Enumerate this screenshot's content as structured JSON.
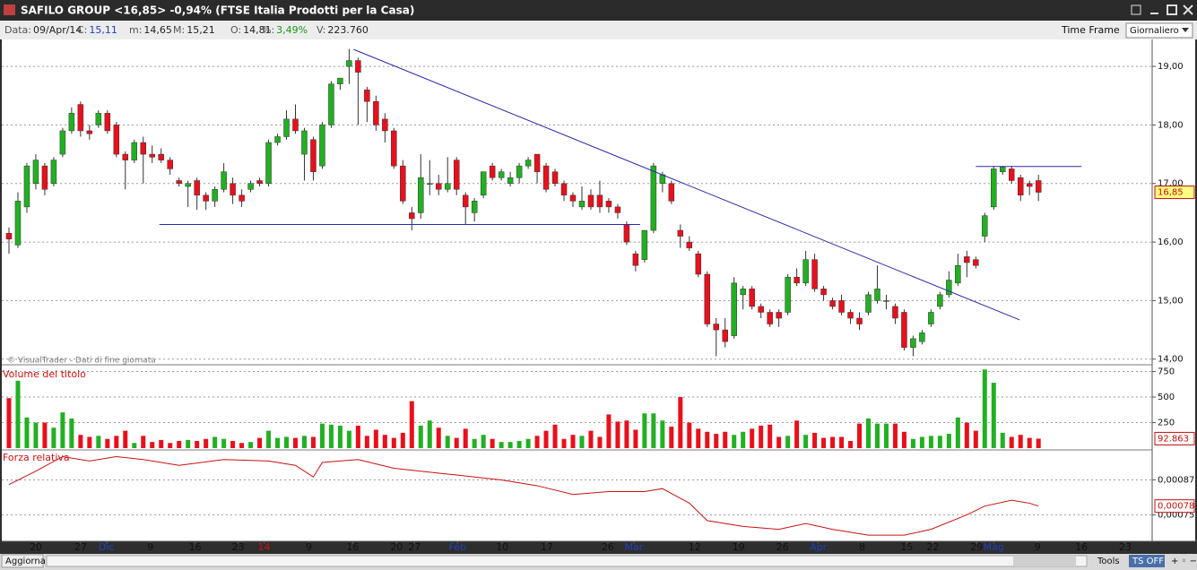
{
  "header": {
    "title": "SAFILO GROUP <16,85> -0,94%  (FTSE Italia Prodotti per la Casa)",
    "info": [
      {
        "label": "Data:",
        "value": "09/Apr/14",
        "color": "#222222"
      },
      {
        "label": "C:",
        "value": "15,11",
        "color": "#1f3fbf"
      },
      {
        "label": "m:",
        "value": "14,65",
        "color": "#222222"
      },
      {
        "label": "M:",
        "value": "15,21",
        "color": "#222222"
      },
      {
        "label": "O:",
        "value": "14,81",
        "color": "#222222"
      },
      {
        "label": "%:",
        "value": "3,49%",
        "color": "#1a9a1a"
      },
      {
        "label": "V:",
        "value": "223.760",
        "color": "#222222"
      }
    ],
    "time_frame": "Time Frame",
    "period": "Giornaliero",
    "credit": "© VisualTrader - Dati di fine giornata"
  },
  "footer": {
    "refresh": "Aggiorna",
    "tools": "Tools",
    "ts": "TS OFF"
  },
  "chart_data": [
    {
      "type": "candlestick",
      "up_color": "#22b022",
      "down_color": "#e8101c",
      "xlim": [
        -0.8,
        127.7
      ],
      "xticks": [
        {
          "value": 3,
          "label": "20"
        },
        {
          "value": 8,
          "label": "27"
        },
        {
          "value": 10.9,
          "label": "Dic",
          "color": "#1f3fbf"
        },
        {
          "value": 15.8,
          "label": "9"
        },
        {
          "value": 20.8,
          "label": "16"
        },
        {
          "value": 25.6,
          "label": "23"
        },
        {
          "value": 28.5,
          "label": "14",
          "color": "#d01010"
        },
        {
          "value": 33.5,
          "label": "9"
        },
        {
          "value": 38.4,
          "label": "16"
        },
        {
          "value": 43.3,
          "label": "20"
        },
        {
          "value": 45.3,
          "label": "27"
        },
        {
          "value": 50.1,
          "label": "Feb",
          "color": "#1f3fbf"
        },
        {
          "value": 55.1,
          "label": "10"
        },
        {
          "value": 60.1,
          "label": "17"
        },
        {
          "value": 66.9,
          "label": "26"
        },
        {
          "value": 69.8,
          "label": "Mar",
          "color": "#1f3fbf"
        },
        {
          "value": 76.6,
          "label": "12"
        },
        {
          "value": 81.5,
          "label": "19"
        },
        {
          "value": 86.4,
          "label": "26"
        },
        {
          "value": 90.4,
          "label": "Apr",
          "color": "#1f3fbf"
        },
        {
          "value": 95.3,
          "label": "8"
        },
        {
          "value": 100.3,
          "label": "15"
        },
        {
          "value": 103.2,
          "label": "22"
        },
        {
          "value": 108.1,
          "label": "29"
        },
        {
          "value": 110,
          "label": "Mag",
          "color": "#1f3fbf"
        },
        {
          "value": 114.9,
          "label": "9"
        },
        {
          "value": 119.8,
          "label": "16"
        },
        {
          "value": 124.7,
          "label": "23"
        }
      ],
      "ylim": [
        13.95,
        19.43
      ],
      "yticks": [
        {
          "value": 14,
          "label": "14,00"
        },
        {
          "value": 15,
          "label": "15,00"
        },
        {
          "value": 16,
          "label": "16,00"
        },
        {
          "value": 17,
          "label": "17,00"
        },
        {
          "value": 18,
          "label": "18,00"
        },
        {
          "value": 19,
          "label": "19,00"
        }
      ],
      "grid": true,
      "last_label": {
        "value": 16.85,
        "label": "16,85",
        "color": "#ffff80"
      },
      "candles": [
        [
          16.15,
          16.25,
          15.8,
          16.05
        ],
        [
          15.95,
          16.85,
          15.9,
          16.7
        ],
        [
          16.6,
          17.35,
          16.5,
          17.3
        ],
        [
          17.0,
          17.5,
          16.9,
          17.4
        ],
        [
          17.3,
          17.35,
          16.8,
          16.9
        ],
        [
          17.0,
          17.45,
          16.95,
          17.4
        ],
        [
          17.5,
          17.95,
          17.45,
          17.9
        ],
        [
          17.9,
          18.3,
          17.85,
          18.2
        ],
        [
          18.35,
          18.4,
          17.8,
          17.9
        ],
        [
          17.9,
          18.0,
          17.75,
          17.85
        ],
        [
          18.0,
          18.25,
          17.95,
          18.2
        ],
        [
          18.2,
          18.25,
          17.85,
          17.9
        ],
        [
          18.0,
          18.05,
          17.45,
          17.5
        ],
        [
          17.5,
          17.55,
          16.9,
          17.4
        ],
        [
          17.4,
          17.75,
          17.35,
          17.7
        ],
        [
          17.7,
          17.8,
          17.0,
          17.5
        ],
        [
          17.5,
          17.65,
          17.35,
          17.45
        ],
        [
          17.5,
          17.6,
          17.35,
          17.4
        ],
        [
          17.4,
          17.45,
          17.15,
          17.25
        ],
        [
          17.05,
          17.1,
          16.95,
          17.0
        ],
        [
          16.95,
          17.05,
          16.6,
          17.0
        ],
        [
          17.05,
          17.1,
          16.55,
          16.8
        ],
        [
          16.8,
          16.85,
          16.55,
          16.7
        ],
        [
          16.7,
          16.95,
          16.6,
          16.9
        ],
        [
          16.9,
          17.35,
          16.85,
          17.2
        ],
        [
          17.0,
          17.1,
          16.65,
          16.8
        ],
        [
          16.8,
          16.9,
          16.6,
          16.7
        ],
        [
          16.9,
          17.05,
          16.85,
          17.0
        ],
        [
          17.05,
          17.1,
          16.95,
          17.0
        ],
        [
          17.0,
          17.75,
          16.95,
          17.7
        ],
        [
          17.7,
          17.85,
          17.65,
          17.8
        ],
        [
          17.8,
          18.25,
          17.75,
          18.1
        ],
        [
          18.1,
          18.35,
          17.85,
          17.9
        ],
        [
          17.5,
          17.95,
          17.05,
          17.9
        ],
        [
          17.75,
          17.8,
          17.05,
          17.2
        ],
        [
          17.3,
          18.05,
          17.25,
          18.0
        ],
        [
          18.0,
          18.75,
          17.95,
          18.7
        ],
        [
          18.7,
          18.8,
          18.6,
          18.8
        ],
        [
          19.0,
          19.3,
          18.7,
          19.1
        ],
        [
          19.1,
          19.15,
          18.0,
          18.9
        ],
        [
          18.6,
          18.65,
          18.05,
          18.4
        ],
        [
          18.4,
          18.5,
          17.9,
          18.0
        ],
        [
          18.1,
          18.2,
          17.7,
          17.9
        ],
        [
          17.9,
          17.95,
          17.25,
          17.3
        ],
        [
          17.3,
          17.4,
          16.65,
          16.7
        ],
        [
          16.5,
          16.6,
          16.2,
          16.4
        ],
        [
          16.5,
          17.5,
          16.4,
          17.1
        ],
        [
          17.0,
          17.4,
          16.8,
          17.0
        ],
        [
          17.0,
          17.15,
          16.8,
          16.9
        ],
        [
          16.9,
          17.45,
          16.85,
          17.0
        ],
        [
          17.4,
          17.45,
          16.8,
          16.9
        ],
        [
          16.8,
          16.85,
          16.3,
          16.6
        ],
        [
          16.5,
          16.75,
          16.35,
          16.7
        ],
        [
          16.8,
          17.2,
          16.75,
          17.2
        ],
        [
          17.3,
          17.35,
          17.05,
          17.1
        ],
        [
          17.1,
          17.25,
          17.05,
          17.2
        ],
        [
          17.0,
          17.2,
          16.95,
          17.1
        ],
        [
          17.1,
          17.35,
          17.0,
          17.3
        ],
        [
          17.3,
          17.45,
          17.25,
          17.4
        ],
        [
          17.5,
          17.5,
          17.0,
          17.2
        ],
        [
          17.3,
          17.35,
          16.85,
          16.9
        ],
        [
          17.2,
          17.25,
          16.95,
          17.0
        ],
        [
          17.0,
          17.05,
          16.7,
          16.8
        ],
        [
          16.8,
          16.85,
          16.6,
          16.7
        ],
        [
          16.6,
          16.95,
          16.55,
          16.7
        ],
        [
          16.8,
          16.9,
          16.55,
          16.6
        ],
        [
          16.8,
          17.05,
          16.5,
          16.6
        ],
        [
          16.7,
          16.75,
          16.5,
          16.6
        ],
        [
          16.6,
          16.65,
          16.4,
          16.5
        ],
        [
          16.3,
          16.35,
          15.95,
          16.0
        ],
        [
          15.8,
          15.85,
          15.5,
          15.6
        ],
        [
          15.7,
          16.2,
          15.65,
          16.2
        ],
        [
          16.2,
          17.35,
          16.15,
          17.3
        ],
        [
          17.0,
          17.2,
          16.85,
          17.15
        ],
        [
          17.0,
          17.05,
          16.65,
          16.7
        ],
        [
          16.2,
          16.3,
          15.9,
          16.1
        ],
        [
          16.0,
          16.1,
          15.85,
          15.9
        ],
        [
          15.8,
          15.85,
          15.4,
          15.45
        ],
        [
          15.45,
          15.5,
          14.55,
          14.6
        ],
        [
          14.6,
          14.7,
          14.05,
          14.5
        ],
        [
          14.5,
          14.7,
          14.2,
          14.3
        ],
        [
          14.4,
          15.4,
          14.35,
          15.3
        ],
        [
          15.1,
          15.25,
          14.85,
          15.2
        ],
        [
          15.2,
          15.25,
          14.85,
          14.9
        ],
        [
          14.9,
          14.95,
          14.7,
          14.8
        ],
        [
          14.8,
          14.85,
          14.55,
          14.6
        ],
        [
          14.8,
          14.85,
          14.55,
          14.7
        ],
        [
          14.8,
          15.45,
          14.75,
          15.4
        ],
        [
          15.4,
          15.55,
          15.25,
          15.3
        ],
        [
          15.3,
          15.85,
          15.25,
          15.7
        ],
        [
          15.7,
          15.8,
          15.15,
          15.2
        ],
        [
          15.2,
          15.25,
          15.0,
          15.1
        ],
        [
          15.0,
          15.05,
          14.85,
          14.9
        ],
        [
          15.0,
          15.1,
          14.75,
          14.8
        ],
        [
          14.8,
          14.85,
          14.6,
          14.7
        ],
        [
          14.7,
          14.8,
          14.5,
          14.6
        ],
        [
          14.8,
          15.15,
          14.75,
          15.1
        ],
        [
          15.0,
          15.6,
          14.95,
          15.2
        ],
        [
          15.0,
          15.1,
          14.85,
          15.0
        ],
        [
          14.9,
          14.95,
          14.6,
          14.7
        ],
        [
          14.8,
          14.85,
          14.15,
          14.2
        ],
        [
          14.2,
          14.4,
          14.05,
          14.35
        ],
        [
          14.3,
          14.5,
          14.25,
          14.45
        ],
        [
          14.6,
          14.85,
          14.55,
          14.8
        ],
        [
          14.9,
          15.15,
          14.85,
          15.1
        ],
        [
          15.1,
          15.5,
          15.05,
          15.35
        ],
        [
          15.3,
          15.8,
          15.25,
          15.6
        ],
        [
          15.75,
          15.85,
          15.4,
          15.65
        ],
        [
          15.7,
          15.75,
          15.55,
          15.6
        ],
        [
          16.1,
          16.5,
          16.0,
          16.45
        ],
        [
          16.6,
          17.3,
          16.55,
          17.25
        ],
        [
          17.2,
          17.3,
          17.15,
          17.28
        ],
        [
          17.25,
          17.3,
          17.0,
          17.05
        ],
        [
          17.1,
          17.15,
          16.7,
          16.8
        ],
        [
          17.0,
          17.05,
          16.8,
          16.95
        ],
        [
          17.05,
          17.15,
          16.7,
          16.85
        ]
      ],
      "lines": [
        {
          "x": [
            38.5,
            112.9
          ],
          "values": [
            19.29,
            14.67
          ],
          "color": "#2a2aa8"
        },
        {
          "x": [
            16.8,
            70.5
          ],
          "values": [
            16.3,
            16.3
          ],
          "color": "#2a2aa8"
        },
        {
          "x": [
            108,
            119.8
          ],
          "values": [
            17.29,
            17.29
          ],
          "color": "#2a2aa8"
        }
      ]
    },
    {
      "type": "bar",
      "title": "Volume del titolo",
      "ylim": [
        0,
        790
      ],
      "yticks": [
        250,
        500,
        750
      ],
      "grid": true,
      "last_label": {
        "value": 92.863,
        "label": "92.863",
        "color": "#ffffff"
      },
      "values": [
        490,
        660,
        300,
        250,
        250,
        200,
        350,
        290,
        130,
        110,
        120,
        90,
        120,
        170,
        50,
        120,
        60,
        80,
        50,
        70,
        80,
        70,
        90,
        110,
        90,
        70,
        50,
        60,
        100,
        170,
        100,
        110,
        100,
        120,
        110,
        240,
        230,
        220,
        170,
        220,
        120,
        180,
        130,
        100,
        150,
        460,
        220,
        270,
        200,
        120,
        100,
        190,
        90,
        130,
        90,
        60,
        60,
        70,
        90,
        120,
        170,
        230,
        90,
        130,
        120,
        170,
        110,
        330,
        260,
        270,
        180,
        340,
        340,
        270,
        210,
        500,
        250,
        190,
        160,
        140,
        160,
        130,
        160,
        190,
        220,
        230,
        110,
        120,
        270,
        130,
        150,
        100,
        110,
        110,
        70,
        240,
        290,
        240,
        240,
        240,
        160,
        90,
        110,
        120,
        120,
        140,
        300,
        250,
        170,
        770,
        640,
        150,
        110,
        130,
        100,
        92.863
      ]
    },
    {
      "type": "line",
      "title": "Forza relativa",
      "color": "#c81010",
      "ylim": [
        0.000665,
        0.00097
      ],
      "yticks": [
        {
          "value": 0.00087,
          "label": "0,00087"
        },
        {
          "value": 0.00075,
          "label": "0,00075"
        }
      ],
      "grid": true,
      "last_label": {
        "value": 0.00078,
        "label": "0,00078",
        "color": "#ffffff"
      },
      "x": [
        0,
        3,
        6,
        9,
        12,
        15,
        19,
        24,
        29,
        32,
        34,
        35,
        39,
        43,
        49,
        55,
        59,
        63,
        67,
        71,
        73,
        76,
        78,
        82,
        86,
        89,
        92,
        96,
        100,
        103,
        107,
        109,
        112,
        114,
        115
      ],
      "values": [
        0.000854,
        0.0009,
        0.00095,
        0.000935,
        0.00095,
        0.00094,
        0.00092,
        0.00094,
        0.000935,
        0.00092,
        0.00088,
        0.00093,
        0.00094,
        0.00091,
        0.00089,
        0.00087,
        0.00085,
        0.00082,
        0.00083,
        0.00083,
        0.00084,
        0.00079,
        0.00073,
        0.00071,
        0.0007,
        0.00072,
        0.0007,
        0.00068,
        0.00068,
        0.0007,
        0.00075,
        0.00078,
        0.0008,
        0.00079,
        0.00078
      ]
    }
  ]
}
